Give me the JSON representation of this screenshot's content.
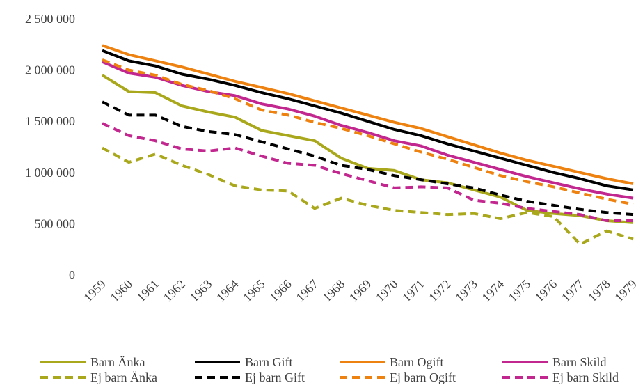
{
  "chart_data": {
    "type": "line",
    "categories": [
      "1959",
      "1960",
      "1961",
      "1962",
      "1963",
      "1964",
      "1965",
      "1966",
      "1967",
      "1968",
      "1969",
      "1970",
      "1971",
      "1972",
      "1973",
      "1974",
      "1975",
      "1976",
      "1977",
      "1978",
      "1979"
    ],
    "ylim": [
      0,
      2500000
    ],
    "yticks": [
      0,
      {
        "value": 500000,
        "label": "500 000"
      },
      {
        "value": 1000000,
        "label": "1 000 000"
      },
      {
        "value": 1500000,
        "label": "1 500 000"
      },
      {
        "value": 2000000,
        "label": "2 000 000"
      },
      {
        "value": 2500000,
        "label": "2 500 000"
      }
    ],
    "grid": false,
    "series": [
      {
        "name": "Barn Änka",
        "color": "#a9a81c",
        "dash": false,
        "values": [
          1950000,
          1790000,
          1780000,
          1650000,
          1590000,
          1540000,
          1410000,
          1360000,
          1310000,
          1140000,
          1040000,
          1020000,
          930000,
          900000,
          830000,
          760000,
          630000,
          600000,
          580000,
          530000,
          510000
        ]
      },
      {
        "name": "Barn Gift",
        "color": "#000000",
        "dash": false,
        "values": [
          2190000,
          2090000,
          2040000,
          1960000,
          1910000,
          1850000,
          1780000,
          1720000,
          1650000,
          1580000,
          1500000,
          1420000,
          1360000,
          1280000,
          1210000,
          1140000,
          1070000,
          1000000,
          940000,
          870000,
          830000
        ]
      },
      {
        "name": "Barn Ogift",
        "color": "#ee8211",
        "dash": false,
        "values": [
          2240000,
          2150000,
          2090000,
          2030000,
          1960000,
          1890000,
          1830000,
          1770000,
          1700000,
          1630000,
          1560000,
          1490000,
          1430000,
          1350000,
          1270000,
          1190000,
          1120000,
          1060000,
          1000000,
          940000,
          890000
        ]
      },
      {
        "name": "Barn Skild",
        "color": "#c2278f",
        "dash": false,
        "values": [
          2080000,
          1970000,
          1930000,
          1850000,
          1790000,
          1750000,
          1670000,
          1620000,
          1550000,
          1460000,
          1390000,
          1310000,
          1260000,
          1170000,
          1100000,
          1030000,
          960000,
          900000,
          840000,
          790000,
          750000
        ]
      },
      {
        "name": "Ej barn Änka",
        "color": "#a9a81c",
        "dash": true,
        "values": [
          1240000,
          1100000,
          1180000,
          1070000,
          980000,
          870000,
          830000,
          820000,
          650000,
          750000,
          680000,
          630000,
          610000,
          590000,
          600000,
          550000,
          610000,
          570000,
          300000,
          430000,
          350000
        ]
      },
      {
        "name": "Ej barn Gift",
        "color": "#000000",
        "dash": true,
        "values": [
          1690000,
          1560000,
          1560000,
          1450000,
          1400000,
          1370000,
          1300000,
          1230000,
          1160000,
          1070000,
          1030000,
          970000,
          930000,
          890000,
          850000,
          780000,
          720000,
          680000,
          640000,
          610000,
          590000
        ]
      },
      {
        "name": "Ej barn Ogift",
        "color": "#ee8211",
        "dash": true,
        "values": [
          2100000,
          2000000,
          1950000,
          1860000,
          1800000,
          1720000,
          1610000,
          1560000,
          1490000,
          1430000,
          1360000,
          1280000,
          1200000,
          1130000,
          1050000,
          970000,
          910000,
          860000,
          800000,
          740000,
          690000
        ]
      },
      {
        "name": "Ej barn Skild",
        "color": "#c2278f",
        "dash": true,
        "values": [
          1480000,
          1360000,
          1310000,
          1230000,
          1210000,
          1240000,
          1160000,
          1090000,
          1070000,
          990000,
          920000,
          850000,
          860000,
          850000,
          730000,
          700000,
          650000,
          620000,
          590000,
          530000,
          530000
        ]
      }
    ]
  }
}
